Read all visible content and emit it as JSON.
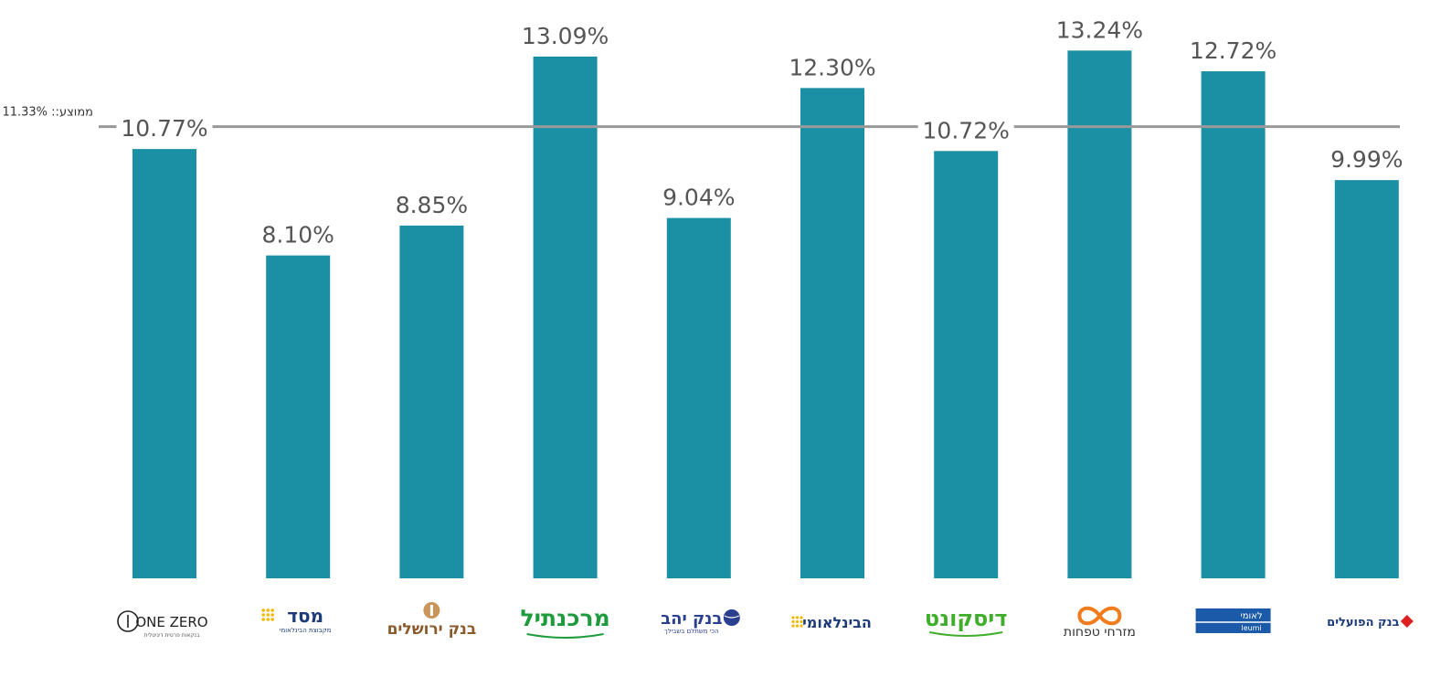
{
  "chart_data": {
    "type": "bar",
    "categories": [
      "ONE ZERO",
      "מסד",
      "בנק ירושלים",
      "מרכנתיל",
      "בנק יהב",
      "הבינלאומי",
      "דיסקונט",
      "מזרחי טפחות",
      "לאומי",
      "בנק הפועלים"
    ],
    "values": [
      10.77,
      8.1,
      8.85,
      13.09,
      9.04,
      12.3,
      10.72,
      13.24,
      12.72,
      9.99
    ],
    "value_labels": [
      "10.77%",
      "8.10%",
      "8.85%",
      "13.09%",
      "9.04%",
      "12.30%",
      "10.72%",
      "13.24%",
      "12.72%",
      "9.99%"
    ],
    "average": 11.33,
    "average_label": "ממוצע:: 11.33%",
    "ylim": [
      0,
      13.5
    ],
    "grid": false,
    "bar_color": "#1b8fa3",
    "average_line_color": "#999999"
  },
  "logos": [
    {
      "name": "one-zero",
      "main": "ONE ZERO",
      "sub": "בנקאות פרטית דיגיטלית",
      "color": "#222222"
    },
    {
      "name": "massad",
      "main": "מסד",
      "sub": "מקבוצת הבינלאומי",
      "color": "#1d3a7a",
      "accent": "#f2b705"
    },
    {
      "name": "jerusalem",
      "main": "בנק ירושלים",
      "color": "#8a5a2b"
    },
    {
      "name": "mercantile",
      "main": "מרכנתיל",
      "color": "#1e9b3c"
    },
    {
      "name": "yahav",
      "main": "בנק יהב",
      "sub": "הכי משתלם בשבילך",
      "color": "#2a3f8f"
    },
    {
      "name": "beinleumi",
      "main": "הבינלאומי",
      "color": "#1d3a7a",
      "accent": "#f2b705"
    },
    {
      "name": "discount",
      "main": "דיסקונט",
      "color": "#3fae2a"
    },
    {
      "name": "mizrahi",
      "main": "מזרחי טפחות",
      "color": "#333333",
      "accent": "#f07c1e"
    },
    {
      "name": "leumi",
      "main": "לאומי",
      "sub": "leumi",
      "color": "#1a5aa8"
    },
    {
      "name": "hapoalim",
      "main": "בנק הפועלים",
      "color": "#1d3a7a",
      "accent": "#e02020"
    }
  ]
}
